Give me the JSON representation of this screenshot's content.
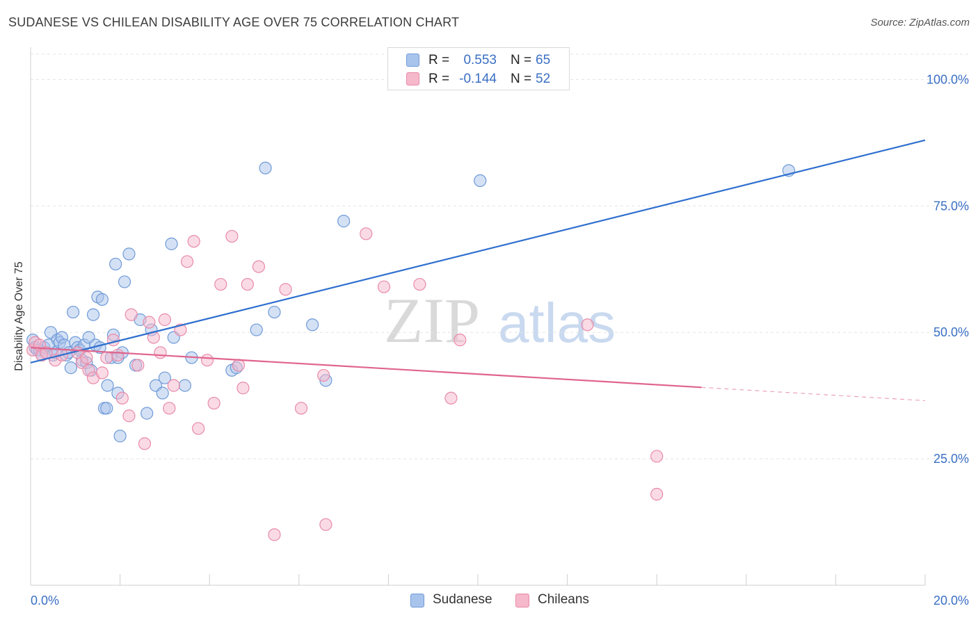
{
  "header": {
    "title": "SUDANESE VS CHILEAN DISABILITY AGE OVER 75 CORRELATION CHART",
    "source": "Source: ZipAtlas.com"
  },
  "watermark": {
    "zip": "ZIP",
    "atlas": "atlas"
  },
  "stats_box": {
    "rows": [
      {
        "r_label": "R =",
        "r_value": "0.553",
        "n_label": "N =",
        "n_value": "65",
        "color": "#a9c4ec"
      },
      {
        "r_label": "R =",
        "r_value": "-0.144",
        "n_label": "N =",
        "n_value": "52",
        "color": "#f6b8cb"
      }
    ]
  },
  "legend": {
    "items": [
      {
        "label": "Sudanese",
        "color": "#a9c4ec"
      },
      {
        "label": "Chileans",
        "color": "#f6b8cb"
      }
    ]
  },
  "chart_data": {
    "type": "scatter",
    "title": "SUDANESE VS CHILEAN DISABILITY AGE OVER 75 CORRELATION CHART",
    "xlabel": "",
    "ylabel": "Disability Age Over 75",
    "xlim": [
      0,
      20
    ],
    "ylim": [
      0,
      105
    ],
    "x_tick_labels": [
      {
        "value": 0,
        "label": "0.0%"
      },
      {
        "value": 20,
        "label": "20.0%"
      }
    ],
    "y_tick_labels": [
      {
        "value": 25,
        "label": "25.0%"
      },
      {
        "value": 50,
        "label": "50.0%"
      },
      {
        "value": 75,
        "label": "75.0%"
      },
      {
        "value": 100,
        "label": "100.0%"
      }
    ],
    "grid": true,
    "legend_position": "bottom",
    "series": [
      {
        "name": "Sudanese",
        "color": "#a9c4ec",
        "edge_color": "#6f9ad8",
        "line_color": "#2f6fce",
        "trend": {
          "x": [
            0,
            20
          ],
          "y": [
            44.0,
            88.0
          ],
          "dashed_from": null
        },
        "points": [
          [
            0.05,
            48.5
          ],
          [
            0.1,
            47.0
          ],
          [
            0.15,
            46.5
          ],
          [
            0.2,
            46.5
          ],
          [
            0.25,
            45.5
          ],
          [
            0.3,
            47.0
          ],
          [
            0.35,
            46.0
          ],
          [
            0.45,
            50.0
          ],
          [
            0.5,
            45.5
          ],
          [
            0.55,
            46.0
          ],
          [
            0.6,
            48.5
          ],
          [
            0.65,
            48.0
          ],
          [
            0.7,
            49.0
          ],
          [
            0.75,
            47.5
          ],
          [
            0.8,
            45.5
          ],
          [
            0.85,
            46.0
          ],
          [
            0.9,
            43.0
          ],
          [
            0.95,
            54.0
          ],
          [
            1.0,
            48.0
          ],
          [
            1.05,
            47.0
          ],
          [
            1.1,
            46.5
          ],
          [
            1.15,
            44.5
          ],
          [
            1.2,
            47.5
          ],
          [
            1.25,
            44.0
          ],
          [
            1.3,
            49.0
          ],
          [
            1.35,
            42.5
          ],
          [
            1.4,
            53.5
          ],
          [
            1.45,
            47.5
          ],
          [
            1.5,
            57.0
          ],
          [
            1.55,
            47.0
          ],
          [
            1.6,
            56.5
          ],
          [
            1.65,
            35.0
          ],
          [
            1.7,
            35.0
          ],
          [
            1.72,
            39.5
          ],
          [
            1.8,
            45.0
          ],
          [
            1.85,
            49.5
          ],
          [
            1.9,
            63.5
          ],
          [
            1.95,
            38.0
          ],
          [
            2.0,
            29.5
          ],
          [
            2.05,
            46.0
          ],
          [
            2.1,
            60.0
          ],
          [
            2.2,
            65.5
          ],
          [
            2.35,
            43.5
          ],
          [
            2.45,
            52.5
          ],
          [
            2.6,
            34.0
          ],
          [
            2.7,
            50.5
          ],
          [
            2.8,
            39.5
          ],
          [
            2.95,
            38.0
          ],
          [
            3.0,
            41.0
          ],
          [
            3.15,
            67.5
          ],
          [
            3.2,
            49.0
          ],
          [
            3.45,
            39.5
          ],
          [
            3.6,
            45.0
          ],
          [
            4.5,
            42.5
          ],
          [
            4.6,
            43.0
          ],
          [
            5.05,
            50.5
          ],
          [
            5.25,
            82.5
          ],
          [
            5.45,
            54.0
          ],
          [
            6.3,
            51.5
          ],
          [
            6.6,
            40.5
          ],
          [
            7.0,
            72.0
          ],
          [
            10.05,
            80.0
          ],
          [
            16.95,
            82.0
          ],
          [
            1.95,
            45.0
          ],
          [
            0.4,
            47.5
          ]
        ]
      },
      {
        "name": "Chileans",
        "color": "#f6b8cb",
        "edge_color": "#e88aa8",
        "line_color": "#e0648d",
        "trend": {
          "x": [
            0,
            20
          ],
          "y": [
            47.0,
            36.5
          ],
          "dashed_from": 15.0
        },
        "points": [
          [
            0.05,
            46.5
          ],
          [
            0.1,
            48.0
          ],
          [
            0.2,
            47.5
          ],
          [
            0.25,
            45.5
          ],
          [
            0.35,
            46.0
          ],
          [
            0.55,
            44.5
          ],
          [
            0.7,
            45.5
          ],
          [
            1.05,
            46.0
          ],
          [
            1.15,
            44.0
          ],
          [
            1.25,
            45.0
          ],
          [
            1.3,
            42.5
          ],
          [
            1.4,
            41.0
          ],
          [
            1.6,
            42.0
          ],
          [
            1.7,
            45.0
          ],
          [
            1.85,
            48.5
          ],
          [
            1.95,
            45.5
          ],
          [
            2.05,
            37.0
          ],
          [
            2.2,
            33.5
          ],
          [
            2.25,
            53.5
          ],
          [
            2.4,
            43.5
          ],
          [
            2.55,
            28.0
          ],
          [
            2.65,
            52.0
          ],
          [
            2.75,
            49.0
          ],
          [
            2.9,
            46.0
          ],
          [
            3.0,
            52.5
          ],
          [
            3.1,
            35.0
          ],
          [
            3.2,
            39.5
          ],
          [
            3.35,
            50.5
          ],
          [
            3.5,
            64.0
          ],
          [
            3.65,
            68.0
          ],
          [
            3.75,
            31.0
          ],
          [
            3.95,
            44.5
          ],
          [
            4.1,
            36.0
          ],
          [
            4.25,
            59.5
          ],
          [
            4.5,
            69.0
          ],
          [
            4.65,
            43.5
          ],
          [
            4.75,
            39.0
          ],
          [
            4.85,
            59.5
          ],
          [
            5.1,
            63.0
          ],
          [
            5.45,
            10.0
          ],
          [
            5.7,
            58.5
          ],
          [
            6.05,
            35.0
          ],
          [
            6.55,
            41.5
          ],
          [
            6.6,
            12.0
          ],
          [
            7.5,
            69.5
          ],
          [
            7.9,
            59.0
          ],
          [
            8.7,
            59.5
          ],
          [
            9.4,
            37.0
          ],
          [
            9.6,
            48.5
          ],
          [
            12.45,
            51.5
          ],
          [
            14.0,
            25.5
          ],
          [
            14.0,
            18.0
          ]
        ]
      }
    ]
  }
}
